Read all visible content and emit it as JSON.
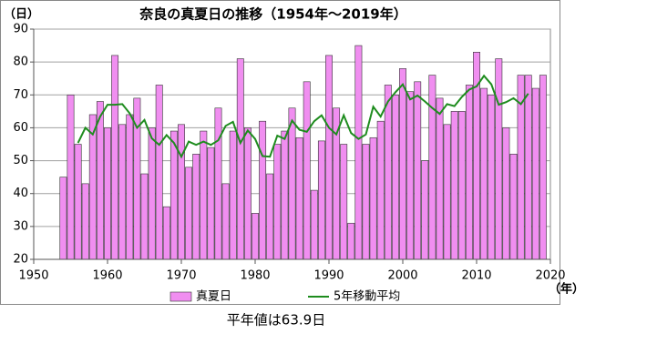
{
  "chart_data": {
    "type": "bar",
    "title": "奈良の真夏日の推移（1954年～2019年）",
    "y_label": "（日）",
    "x_label": "（年）",
    "note": "平年値は63.9日",
    "x": [
      1954,
      1955,
      1956,
      1957,
      1958,
      1959,
      1960,
      1961,
      1962,
      1963,
      1964,
      1965,
      1966,
      1967,
      1968,
      1969,
      1970,
      1971,
      1972,
      1973,
      1974,
      1975,
      1976,
      1977,
      1978,
      1979,
      1980,
      1981,
      1982,
      1983,
      1984,
      1985,
      1986,
      1987,
      1988,
      1989,
      1990,
      1991,
      1992,
      1993,
      1994,
      1995,
      1996,
      1997,
      1998,
      1999,
      2000,
      2001,
      2002,
      2003,
      2004,
      2005,
      2006,
      2007,
      2008,
      2009,
      2010,
      2011,
      2012,
      2013,
      2014,
      2015,
      2016,
      2017,
      2018,
      2019
    ],
    "series": [
      {
        "name": "真夏日",
        "type": "bar",
        "color": "#f08ef0",
        "values": [
          45,
          70,
          55,
          43,
          64,
          68,
          60,
          82,
          61,
          64,
          69,
          46,
          60,
          73,
          36,
          59,
          61,
          48,
          52,
          59,
          54,
          66,
          43,
          59,
          81,
          60,
          34,
          62,
          46,
          55,
          59,
          66,
          57,
          74,
          41,
          56,
          82,
          66,
          55,
          31,
          85,
          55,
          57,
          62,
          73,
          70,
          78,
          71,
          74,
          50,
          76,
          69,
          61,
          65,
          65,
          73,
          83,
          72,
          70,
          81,
          60,
          52,
          76,
          76,
          72,
          76
        ]
      },
      {
        "name": "5年移動平均",
        "type": "line",
        "color": "#1e8c1e",
        "values": [
          null,
          null,
          55.4,
          60.0,
          58.0,
          63.4,
          67.0,
          67.0,
          67.2,
          64.4,
          60.0,
          62.4,
          56.8,
          54.8,
          57.8,
          55.4,
          51.2,
          55.8,
          54.8,
          55.8,
          54.8,
          56.2,
          60.6,
          61.8,
          55.4,
          59.2,
          56.6,
          51.4,
          51.2,
          57.6,
          56.6,
          62.2,
          59.4,
          58.8,
          62.0,
          63.8,
          60.0,
          58.0,
          63.8,
          58.4,
          56.6,
          58.0,
          66.4,
          63.4,
          68.0,
          70.8,
          73.2,
          68.6,
          69.8,
          68.0,
          66.0,
          64.2,
          67.2,
          66.6,
          69.4,
          71.6,
          72.6,
          75.8,
          73.2,
          67.0,
          67.8,
          69.0,
          67.2,
          70.4,
          null,
          null
        ]
      }
    ],
    "xlim": [
      1950,
      2020
    ],
    "xticks": [
      1950,
      1960,
      1970,
      1980,
      1990,
      2000,
      2010,
      2020
    ],
    "ylim": [
      20,
      90
    ],
    "yticks": [
      20,
      30,
      40,
      50,
      60,
      70,
      80,
      90
    ],
    "grid": true
  }
}
